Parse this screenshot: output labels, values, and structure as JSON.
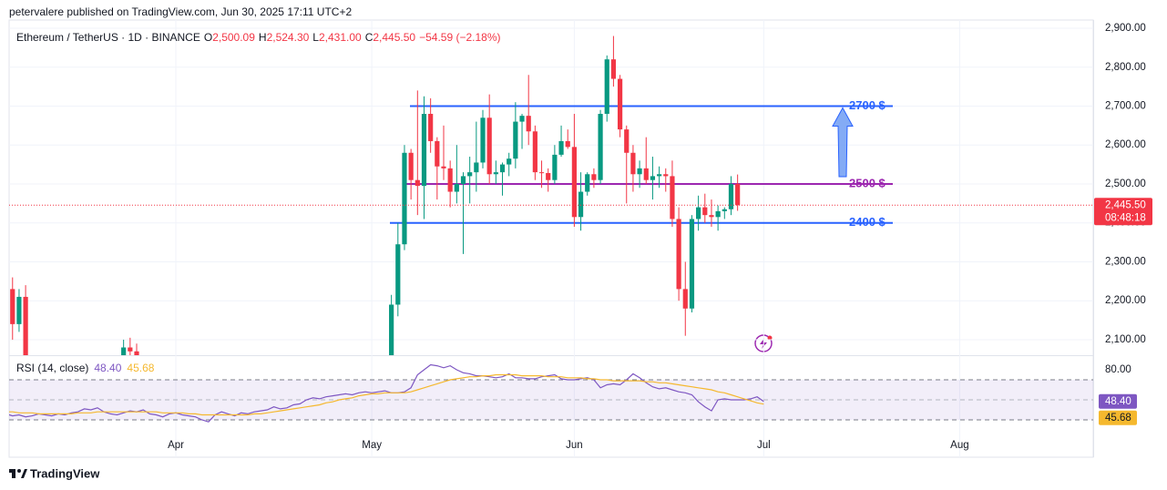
{
  "header": {
    "publisher": "petervalere published on TradingView.com, Jun 30, 2025 17:11 UTC+2"
  },
  "chart_data": {
    "type": "candlestick",
    "title": "Ethereum / TetherUS · 1D · BINANCE",
    "ohlc_header": [
      [
        "O",
        "2,500.09"
      ],
      [
        "H",
        "2,524.30"
      ],
      [
        "L",
        "2,431.00"
      ],
      [
        "C",
        "2,445.50"
      ]
    ],
    "change": "−54.59 (−2.18%)",
    "categories": [
      null,
      null,
      null,
      null,
      null,
      null,
      null,
      null,
      null,
      null,
      null,
      null,
      null,
      null,
      null,
      null,
      null,
      null,
      null,
      null,
      null,
      null,
      null,
      null,
      null,
      null,
      "Apr",
      null,
      null,
      null,
      null,
      null,
      null,
      null,
      null,
      null,
      null,
      null,
      null,
      null,
      null,
      null,
      null,
      null,
      null,
      null,
      null,
      null,
      null,
      null,
      null,
      null,
      null,
      null,
      null,
      null,
      "May",
      null,
      null,
      null,
      null,
      null,
      null,
      null,
      null,
      null,
      null,
      null,
      null,
      null,
      null,
      null,
      null,
      null,
      null,
      null,
      null,
      null,
      null,
      null,
      null,
      null,
      null,
      null,
      null,
      null,
      null,
      "Jun",
      null,
      null,
      null,
      null,
      null,
      null,
      null,
      null,
      null,
      null,
      null,
      null,
      null,
      null,
      null,
      null,
      null,
      null,
      null,
      null,
      null,
      null,
      null,
      null,
      null,
      null,
      null,
      null,
      "Jul",
      null,
      null,
      null,
      null,
      null,
      null,
      null,
      null,
      null,
      null,
      null,
      null,
      null,
      null,
      null,
      null,
      null,
      null,
      null,
      null,
      null,
      null,
      null,
      null,
      null,
      null,
      null,
      null,
      null,
      "Aug",
      null,
      null,
      null,
      null,
      null,
      null,
      null,
      null,
      null,
      null,
      null,
      null,
      null,
      null
    ],
    "ohlc": [
      null,
      [
        2230,
        2260,
        2100,
        2140
      ],
      [
        2140,
        2230,
        2120,
        2210
      ],
      [
        2210,
        2240,
        2000,
        2020
      ],
      null,
      null,
      null,
      null,
      null,
      null,
      null,
      null,
      null,
      null,
      null,
      null,
      null,
      null,
      [
        2010,
        2100,
        1990,
        2080
      ],
      [
        2080,
        2105,
        2060,
        2070
      ],
      [
        2070,
        2090,
        1990,
        2000
      ],
      null,
      null,
      null,
      null,
      null,
      null,
      null,
      null,
      null,
      null,
      null,
      null,
      null,
      null,
      null,
      null,
      null,
      null,
      null,
      null,
      null,
      null,
      null,
      null,
      null,
      null,
      null,
      null,
      null,
      null,
      null,
      null,
      null,
      null,
      null,
      null,
      null,
      null,
      [
        1810,
        2215,
        1795,
        2190
      ],
      [
        2190,
        2400,
        2160,
        2345
      ],
      [
        2345,
        2600,
        2330,
        2580
      ],
      [
        2580,
        2590,
        2460,
        2510
      ],
      [
        2510,
        2740,
        2420,
        2495
      ],
      [
        2495,
        2725,
        2410,
        2680
      ],
      [
        2680,
        2720,
        2580,
        2610
      ],
      [
        2610,
        2620,
        2460,
        2545
      ],
      [
        2545,
        2650,
        2510,
        2540
      ],
      [
        2540,
        2560,
        2440,
        2480
      ],
      [
        2480,
        2600,
        2450,
        2500
      ],
      [
        2500,
        2530,
        2320,
        2520
      ],
      [
        2520,
        2570,
        2450,
        2530
      ],
      [
        2530,
        2660,
        2480,
        2555
      ],
      [
        2555,
        2690,
        2540,
        2670
      ],
      [
        2670,
        2730,
        2500,
        2525
      ],
      [
        2525,
        2560,
        2500,
        2530
      ],
      [
        2530,
        2555,
        2470,
        2550
      ],
      [
        2550,
        2580,
        2520,
        2565
      ],
      [
        2565,
        2710,
        2540,
        2660
      ],
      [
        2660,
        2680,
        2590,
        2675
      ],
      [
        2675,
        2780,
        2600,
        2635
      ],
      [
        2635,
        2650,
        2510,
        2530
      ],
      [
        2530,
        2560,
        2490,
        2528
      ],
      [
        2528,
        2540,
        2480,
        2510
      ],
      [
        2510,
        2600,
        2500,
        2575
      ],
      [
        2575,
        2650,
        2570,
        2610
      ],
      [
        2610,
        2640,
        2590,
        2595
      ],
      [
        2595,
        2680,
        2390,
        2415
      ],
      [
        2415,
        2530,
        2380,
        2480
      ],
      [
        2480,
        2530,
        2470,
        2525
      ],
      [
        2525,
        2540,
        2490,
        2510
      ],
      [
        2510,
        2690,
        2500,
        2680
      ],
      [
        2680,
        2830,
        2660,
        2820
      ],
      [
        2820,
        2880,
        2750,
        2770
      ],
      [
        2770,
        2780,
        2620,
        2640
      ],
      [
        2640,
        2650,
        2450,
        2580
      ],
      [
        2580,
        2600,
        2480,
        2525
      ],
      [
        2525,
        2560,
        2490,
        2540
      ],
      [
        2540,
        2620,
        2500,
        2510
      ],
      [
        2510,
        2570,
        2460,
        2520
      ],
      [
        2520,
        2545,
        2490,
        2525
      ],
      [
        2525,
        2540,
        2480,
        2520
      ],
      [
        2520,
        2560,
        2390,
        2410
      ],
      [
        2410,
        2440,
        2200,
        2230
      ],
      [
        2230,
        2300,
        2110,
        2180
      ],
      [
        2180,
        2420,
        2170,
        2410
      ],
      [
        2410,
        2470,
        2380,
        2440
      ],
      [
        2440,
        2475,
        2400,
        2420
      ],
      [
        2420,
        2460,
        2390,
        2415
      ],
      [
        2415,
        2445,
        2380,
        2430
      ],
      [
        2430,
        2440,
        2410,
        2435
      ],
      [
        2435,
        2520,
        2420,
        2500
      ],
      [
        2500.09,
        2524.3,
        2431,
        2445.5
      ],
      null,
      null,
      null,
      null,
      null,
      null,
      null,
      null,
      null,
      null,
      null,
      null,
      null,
      null,
      null,
      null,
      null,
      null,
      null,
      null,
      null,
      null,
      null,
      null,
      null,
      null,
      null,
      null,
      null,
      null,
      null,
      null,
      null,
      null,
      null,
      null,
      null,
      null,
      null,
      null,
      null,
      null,
      null,
      null,
      null,
      null,
      null
    ],
    "up_color": "#089981",
    "down_color": "#f23645",
    "ylim": [
      2062,
      2950
    ],
    "yticks": [
      {
        "value": 2100,
        "label": "2,100.00"
      },
      {
        "value": 2200,
        "label": "2,200.00"
      },
      {
        "value": 2300,
        "label": "2,300.00"
      },
      {
        "value": 2400,
        "label": "2,400.00"
      },
      {
        "value": 2500,
        "label": "2,500.00"
      },
      {
        "value": 2600,
        "label": "2,600.00"
      },
      {
        "value": 2700,
        "label": "2,700.00"
      },
      {
        "value": 2800,
        "label": "2,800.00"
      },
      {
        "value": 2900,
        "label": "2,900.00"
      }
    ],
    "last_price": {
      "label": "2,445.50",
      "countdown": "08:48:18"
    },
    "annotations": [
      {
        "value": 2700,
        "label": "2700 $",
        "color": "#2962ff"
      },
      {
        "value": 2500,
        "label": "2500 $",
        "color": "#9c27b0"
      },
      {
        "value": 2400,
        "label": "2400 $",
        "color": "#2962ff"
      }
    ],
    "rsi": {
      "title": "RSI (14, close)",
      "ylim": [
        -7,
        93.6
      ],
      "yticks": [
        {
          "value": 80,
          "label": "80.00"
        }
      ],
      "levels": [
        70,
        50,
        30
      ],
      "series": [
        {
          "color": "#7e57c2",
          "current_label": "48.40",
          "values": [
            36,
            34,
            35,
            33,
            34,
            36,
            35,
            34,
            36,
            35,
            37,
            38,
            41,
            40,
            42,
            38,
            36,
            35,
            37,
            39,
            38,
            40,
            36,
            35,
            33,
            36,
            37,
            35,
            34,
            33,
            30,
            28,
            35,
            38,
            36,
            34,
            37,
            36,
            38,
            39,
            40,
            43,
            41,
            42,
            45,
            46,
            50,
            52,
            51,
            53,
            54,
            55,
            56,
            55,
            57,
            58,
            57,
            58,
            59,
            57,
            57,
            58,
            62,
            75,
            80,
            85,
            84,
            82,
            84,
            80,
            77,
            76,
            74,
            74,
            73,
            72,
            73,
            76,
            72,
            72,
            71,
            71,
            73,
            74,
            75,
            71,
            70,
            70,
            71,
            72,
            70,
            62,
            65,
            66,
            65,
            70,
            76,
            72,
            67,
            63,
            61,
            62,
            60,
            58,
            57,
            55,
            48,
            43,
            39,
            50,
            51,
            50,
            50,
            50,
            51,
            53,
            48.4,
            null,
            null,
            null,
            null,
            null,
            null,
            null,
            null,
            null,
            null,
            null,
            null,
            null,
            null,
            null,
            null,
            null,
            null,
            null,
            null,
            null,
            null,
            null,
            null,
            null,
            null,
            null,
            null,
            null,
            null,
            null,
            null,
            null,
            null,
            null,
            null,
            null,
            null,
            null,
            null,
            null,
            null,
            null,
            null,
            null,
            null,
            null
          ]
        },
        {
          "color": "#f5b82e",
          "current_label": "45.68",
          "values": [
            38,
            38,
            37,
            37,
            37,
            36,
            36,
            36,
            36,
            36,
            36,
            37,
            37,
            37,
            38,
            38,
            38,
            38,
            38,
            38,
            38,
            38,
            38,
            38,
            37,
            37,
            37,
            37,
            36,
            36,
            35,
            35,
            35,
            35,
            35,
            35,
            35,
            35,
            36,
            36,
            37,
            38,
            39,
            40,
            41,
            42,
            43,
            44,
            45,
            47,
            48,
            50,
            51,
            52,
            54,
            55,
            56,
            56,
            57,
            57,
            57,
            57,
            58,
            60,
            62,
            64,
            66,
            68,
            70,
            71,
            72,
            73,
            73,
            74,
            74,
            75,
            75,
            75,
            75,
            74,
            74,
            74,
            74,
            73,
            73,
            73,
            72,
            72,
            72,
            71,
            71,
            70,
            70,
            69,
            69,
            69,
            69,
            69,
            68,
            68,
            67,
            67,
            66,
            65,
            64,
            63,
            62,
            61,
            60,
            58,
            57,
            55,
            53,
            51,
            49,
            47,
            45.68,
            null,
            null,
            null,
            null,
            null,
            null,
            null,
            null,
            null,
            null,
            null,
            null,
            null,
            null,
            null,
            null,
            null,
            null,
            null,
            null,
            null,
            null,
            null,
            null,
            null,
            null,
            null,
            null,
            null,
            null,
            null,
            null,
            null,
            null,
            null,
            null,
            null,
            null,
            null,
            null,
            null,
            null,
            null,
            null,
            null,
            null,
            null
          ]
        }
      ]
    }
  },
  "footer": {
    "brand": "TradingView"
  }
}
